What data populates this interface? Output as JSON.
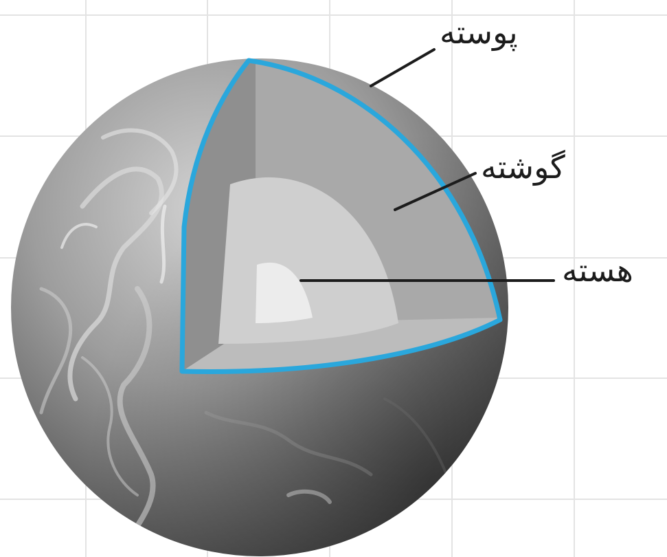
{
  "labels": {
    "crust": "پوسته",
    "mantle": "گوشته",
    "core": "هسته"
  },
  "colors": {
    "outline": "#2aa7dc",
    "grid": "#e3e3e3",
    "crust_face": "#8e8e8e",
    "mantle_face": "#a9a9a9",
    "outer_core": "#cdcdcd",
    "inner_core": "#e9e9e9",
    "leader": "#1c1c1c"
  }
}
